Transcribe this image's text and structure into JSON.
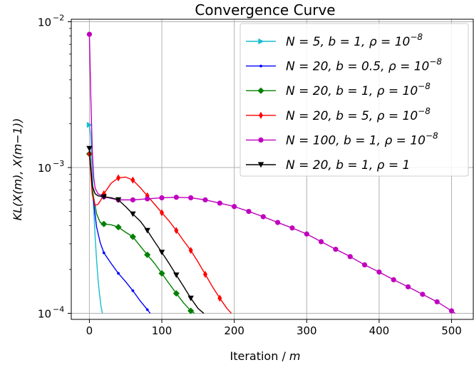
{
  "chart_data": {
    "type": "line",
    "title": "Convergence Curve",
    "xlabel": "Iteration / m",
    "ylabel": "KL(X(m), X(m−1))",
    "x_ticks": [
      0,
      100,
      200,
      300,
      400,
      500
    ],
    "xlim": [
      -25,
      530
    ],
    "ylim": [
      9.09e-05,
      0.0104
    ],
    "yscale": "log",
    "y_ticks": [
      {
        "value": 0.0001,
        "base": "10",
        "exp": "−4"
      },
      {
        "value": 0.001,
        "base": "10",
        "exp": "−3"
      },
      {
        "value": 0.01,
        "base": "10",
        "exp": "−2"
      }
    ],
    "grid": true,
    "legend_position": "upper right",
    "series": [
      {
        "name": "N = 5, b = 1, ρ = 10−8",
        "legend_main": "N = 5, b = 1, ρ = 10",
        "legend_exp": "−8",
        "color": "#17becf",
        "marker": "triangle-right",
        "curve": [
          [
            0,
            0.00196
          ],
          [
            2,
            0.00165
          ],
          [
            4,
            0.00095
          ],
          [
            6,
            0.00052
          ],
          [
            8,
            0.00033
          ],
          [
            10,
            0.00023
          ],
          [
            12,
            0.00017
          ],
          [
            14,
            0.000135
          ],
          [
            16,
            0.000112
          ],
          [
            18,
            0.0001
          ]
        ],
        "markers": [
          [
            0,
            0.00196
          ]
        ]
      },
      {
        "name": "N = 20, b = 0.5, ρ = 10−8",
        "legend_main": "N = 20, b = 0.5, ρ = 10",
        "legend_exp": "−8",
        "color": "#0000ff",
        "marker": "point",
        "curve": [
          [
            0,
            0.00122
          ],
          [
            5,
            0.00062
          ],
          [
            10,
            0.00039
          ],
          [
            15,
            0.000305
          ],
          [
            20,
            0.00026
          ],
          [
            30,
            0.00022
          ],
          [
            40,
            0.000188
          ],
          [
            50,
            0.000165
          ],
          [
            60,
            0.000143
          ],
          [
            70,
            0.000122
          ],
          [
            80,
            0.000106
          ],
          [
            84,
            0.0001
          ]
        ],
        "markers": [
          [
            0,
            0.00122
          ],
          [
            20,
            0.00026
          ],
          [
            40,
            0.000188
          ],
          [
            60,
            0.000143
          ],
          [
            80,
            0.000106
          ]
        ]
      },
      {
        "name": "N = 20, b = 1, ρ = 10−8",
        "legend_main": "N = 20, b = 1, ρ = 10",
        "legend_exp": "−8",
        "color": "#008000",
        "marker": "diamond",
        "curve": [
          [
            0,
            0.00124
          ],
          [
            5,
            0.00066
          ],
          [
            10,
            0.00048
          ],
          [
            15,
            0.00042
          ],
          [
            20,
            0.00041
          ],
          [
            30,
            0.000405
          ],
          [
            40,
            0.00039
          ],
          [
            50,
            0.00036
          ],
          [
            60,
            0.000335
          ],
          [
            70,
            0.00029
          ],
          [
            80,
            0.000252
          ],
          [
            90,
            0.00022
          ],
          [
            100,
            0.000188
          ],
          [
            110,
            0.00016
          ],
          [
            120,
            0.000137
          ],
          [
            130,
            0.000118
          ],
          [
            140,
            0.000104
          ],
          [
            145,
            0.0001
          ]
        ],
        "markers": [
          [
            0,
            0.00124
          ],
          [
            20,
            0.00041
          ],
          [
            40,
            0.00039
          ],
          [
            60,
            0.000335
          ],
          [
            80,
            0.000252
          ],
          [
            100,
            0.000188
          ],
          [
            120,
            0.000137
          ],
          [
            140,
            0.000104
          ]
        ]
      },
      {
        "name": "N = 20, b = 5, ρ = 10−8",
        "legend_main": "N = 20, b = 5, ρ = 10",
        "legend_exp": "−8",
        "color": "#ff0000",
        "marker": "thin-diamond",
        "curve": [
          [
            0,
            0.00124
          ],
          [
            4,
            0.00065
          ],
          [
            8,
            0.00055
          ],
          [
            12,
            0.00056
          ],
          [
            16,
            0.0006
          ],
          [
            20,
            0.00066
          ],
          [
            30,
            0.00078
          ],
          [
            40,
            0.00085
          ],
          [
            50,
            0.00086
          ],
          [
            60,
            0.00082
          ],
          [
            70,
            0.00073
          ],
          [
            80,
            0.00064
          ],
          [
            90,
            0.00056
          ],
          [
            100,
            0.00049
          ],
          [
            110,
            0.00043
          ],
          [
            120,
            0.00037
          ],
          [
            130,
            0.000315
          ],
          [
            140,
            0.00027
          ],
          [
            150,
            0.000225
          ],
          [
            160,
            0.000185
          ],
          [
            170,
            0.000152
          ],
          [
            180,
            0.000127
          ],
          [
            190,
            0.000108
          ],
          [
            196,
            0.0001
          ]
        ],
        "markers": [
          [
            0,
            0.00124
          ],
          [
            20,
            0.00066
          ],
          [
            40,
            0.00085
          ],
          [
            60,
            0.00082
          ],
          [
            80,
            0.00064
          ],
          [
            100,
            0.00049
          ],
          [
            120,
            0.00037
          ],
          [
            140,
            0.00027
          ],
          [
            160,
            0.000185
          ],
          [
            180,
            0.000127
          ]
        ]
      },
      {
        "name": "N = 100, b = 1, ρ = 10−8",
        "legend_main": "N = 100, b = 1, ρ = 10",
        "legend_exp": "−8",
        "color": "#bf00bf",
        "marker": "circle",
        "curve": [
          [
            0,
            0.0082
          ],
          [
            2,
            0.003
          ],
          [
            4,
            0.0013
          ],
          [
            6,
            0.00085
          ],
          [
            8,
            0.00072
          ],
          [
            12,
            0.00066
          ],
          [
            20,
            0.00063
          ],
          [
            40,
            0.0006
          ],
          [
            60,
            0.0006
          ],
          [
            80,
            0.00061
          ],
          [
            100,
            0.00062
          ],
          [
            120,
            0.000625
          ],
          [
            140,
            0.00062
          ],
          [
            160,
            0.0006
          ],
          [
            180,
            0.00057
          ],
          [
            200,
            0.00054
          ],
          [
            220,
            0.0005
          ],
          [
            240,
            0.00046
          ],
          [
            260,
            0.00042
          ],
          [
            280,
            0.000385
          ],
          [
            300,
            0.00035
          ],
          [
            320,
            0.00031
          ],
          [
            340,
            0.000275
          ],
          [
            360,
            0.000245
          ],
          [
            380,
            0.000215
          ],
          [
            400,
            0.000192
          ],
          [
            420,
            0.00017
          ],
          [
            440,
            0.000152
          ],
          [
            460,
            0.000135
          ],
          [
            480,
            0.00012
          ],
          [
            500,
            0.000104
          ],
          [
            505,
            0.0001
          ]
        ],
        "markers": [
          [
            0,
            0.0082
          ],
          [
            20,
            0.00063
          ],
          [
            40,
            0.0006
          ],
          [
            60,
            0.0006
          ],
          [
            80,
            0.00061
          ],
          [
            100,
            0.00062
          ],
          [
            120,
            0.000625
          ],
          [
            140,
            0.00062
          ],
          [
            160,
            0.0006
          ],
          [
            180,
            0.00057
          ],
          [
            200,
            0.00054
          ],
          [
            220,
            0.0005
          ],
          [
            240,
            0.00046
          ],
          [
            260,
            0.00042
          ],
          [
            280,
            0.000385
          ],
          [
            300,
            0.00035
          ],
          [
            320,
            0.00031
          ],
          [
            340,
            0.000275
          ],
          [
            360,
            0.000245
          ],
          [
            380,
            0.000215
          ],
          [
            400,
            0.000192
          ],
          [
            420,
            0.00017
          ],
          [
            440,
            0.000152
          ],
          [
            460,
            0.000135
          ],
          [
            480,
            0.00012
          ],
          [
            500,
            0.000104
          ]
        ]
      },
      {
        "name": "N = 20, b = 1, ρ = 1",
        "legend_main": "N = 20, b = 1, ρ = 1",
        "legend_exp": "",
        "color": "#000000",
        "marker": "triangle-down",
        "curve": [
          [
            0,
            0.00135
          ],
          [
            4,
            0.00075
          ],
          [
            8,
            0.00066
          ],
          [
            12,
            0.00064
          ],
          [
            20,
            0.00063
          ],
          [
            30,
            0.00062
          ],
          [
            40,
            0.0006
          ],
          [
            50,
            0.00054
          ],
          [
            60,
            0.00048
          ],
          [
            70,
            0.00043
          ],
          [
            80,
            0.00037
          ],
          [
            90,
            0.00031
          ],
          [
            100,
            0.000262
          ],
          [
            110,
            0.00022
          ],
          [
            120,
            0.000183
          ],
          [
            130,
            0.000153
          ],
          [
            140,
            0.000127
          ],
          [
            150,
            0.000108
          ],
          [
            158,
            0.0001
          ]
        ],
        "markers": [
          [
            0,
            0.00135
          ],
          [
            20,
            0.00063
          ],
          [
            40,
            0.0006
          ],
          [
            60,
            0.00048
          ],
          [
            80,
            0.00037
          ],
          [
            100,
            0.000262
          ],
          [
            120,
            0.000183
          ],
          [
            140,
            0.000127
          ]
        ]
      }
    ]
  }
}
